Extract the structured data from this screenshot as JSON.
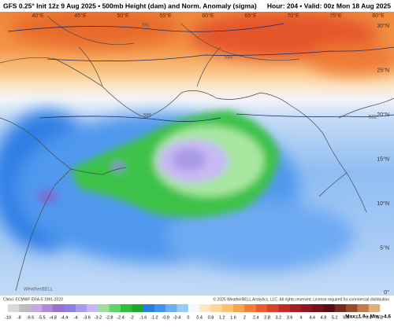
{
  "header": {
    "title": "GFS 0.25° Init 12z 9 Aug 2025 • 500mb Height (dam) and Norm. Anomaly (sigma)",
    "valid": "Hour: 204 • Valid: 00z Mon 18 Aug 2025"
  },
  "map": {
    "lon_labels": [
      "40°E",
      "45°E",
      "50°E",
      "55°E",
      "60°E",
      "65°E",
      "70°E",
      "75°E",
      "80°E"
    ],
    "lat_labels": [
      "30°N",
      "25°N",
      "20°N",
      "15°N",
      "10°N",
      "5°N",
      "0°"
    ],
    "contour_labels": [
      "591",
      "588",
      "585",
      "582"
    ],
    "logo": "WeatherBELL"
  },
  "footer": {
    "climo": "Climo: ECMWF ERA-5 1991-2020",
    "copyright": "© 2025 WeatherBELL Analytics, LLC. All rights reserved. License required for commercial distribution",
    "stats": "Max: 1.9 • Min: -4.6"
  },
  "colorbar": {
    "ticks": [
      -10,
      -8,
      -6.5,
      -5.5,
      -4.8,
      -4.4,
      -4,
      -3.6,
      -3.2,
      -2.8,
      -2.4,
      -2,
      -1.6,
      -1.2,
      -0.8,
      -0.4,
      0,
      0.4,
      0.8,
      1.2,
      1.6,
      2,
      2.4,
      2.8,
      3.2,
      3.6,
      4,
      4.4,
      4.8,
      5.2,
      5.6,
      6,
      6.4,
      6.8
    ],
    "colors": [
      "#d9d9d9",
      "#bdbdbd",
      "#c8a8e0",
      "#b08ad8",
      "#9a6fd0",
      "#8f7fe0",
      "#a89cf0",
      "#c3b8f5",
      "#9fe0a0",
      "#62d36a",
      "#2fbf3a",
      "#1fa82e",
      "#2a7de0",
      "#3f94ef",
      "#6ab0f5",
      "#9ccaf8",
      "#f4f7fb",
      "#fbe9c5",
      "#fbd79a",
      "#f9c170",
      "#f6a24f",
      "#f27d36",
      "#ea5d2a",
      "#d9402a",
      "#c02a28",
      "#a61d24",
      "#8d1620",
      "#74101a",
      "#5a0b13",
      "#7a2a1c",
      "#9c4a2c",
      "#c27a4c",
      "#e2ae7c"
    ]
  }
}
